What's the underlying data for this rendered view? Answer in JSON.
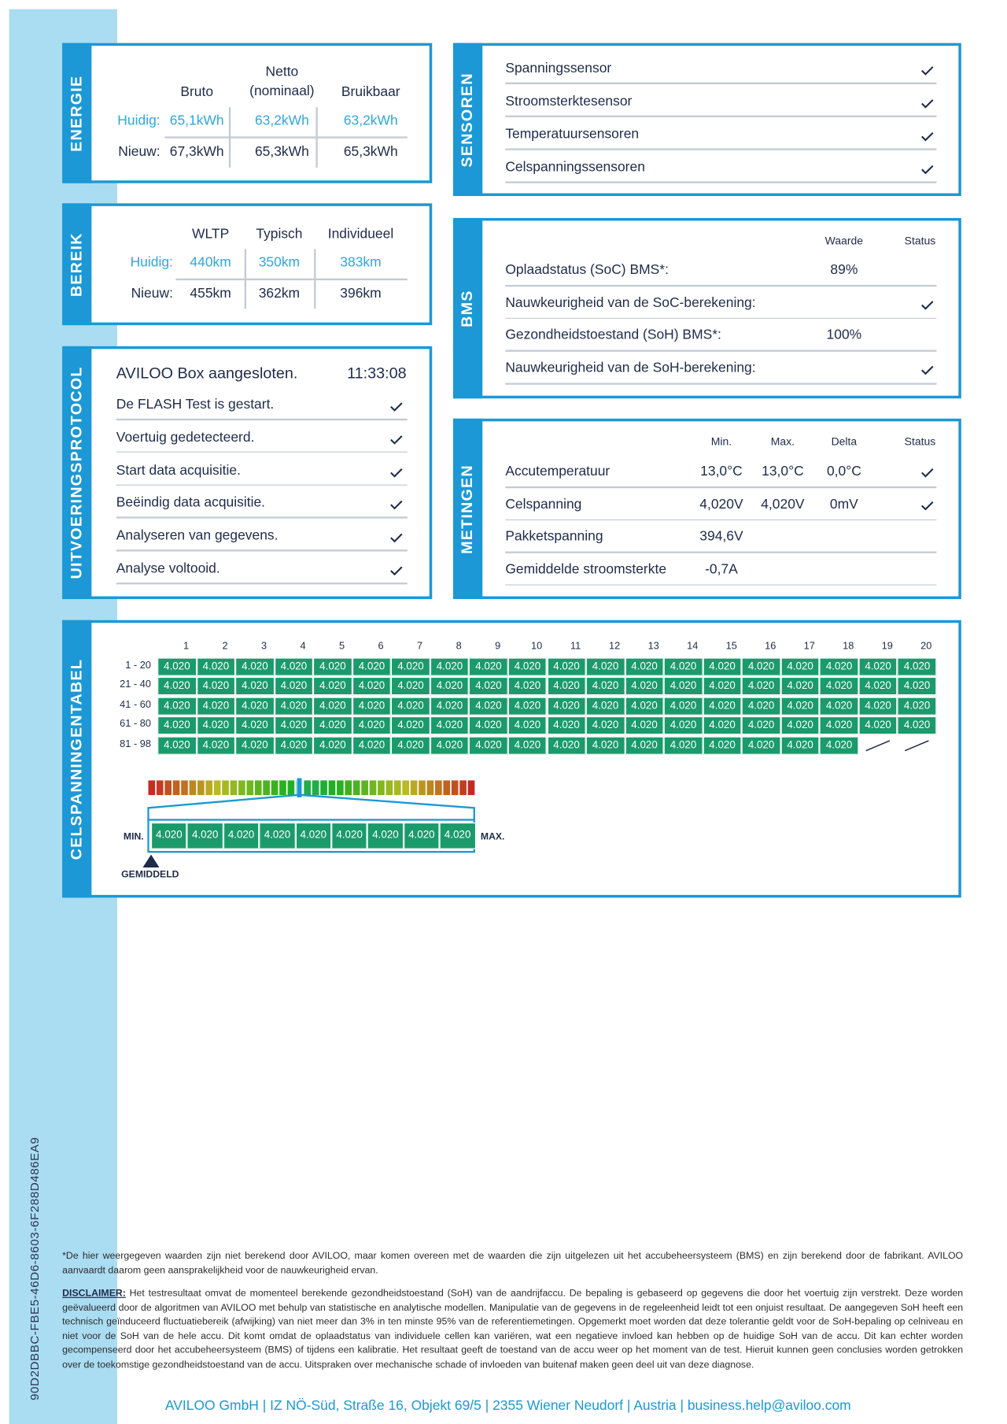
{
  "id_code": "90D2DBBC-FBE5-46D6-8603-6F288D486EA9",
  "energie": {
    "label": "ENERGIE",
    "headers": [
      "Bruto",
      "Netto (nominaal)",
      "Bruikbaar"
    ],
    "rows": [
      {
        "label": "Huidig:",
        "values": [
          "65,1kWh",
          "63,2kWh",
          "63,2kWh"
        ]
      },
      {
        "label": "Nieuw:",
        "values": [
          "67,3kWh",
          "65,3kWh",
          "65,3kWh"
        ]
      }
    ]
  },
  "bereik": {
    "label": "BEREIK",
    "headers": [
      "WLTP",
      "Typisch",
      "Individueel"
    ],
    "rows": [
      {
        "label": "Huidig:",
        "values": [
          "440km",
          "350km",
          "383km"
        ]
      },
      {
        "label": "Nieuw:",
        "values": [
          "455km",
          "362km",
          "396km"
        ]
      }
    ]
  },
  "protocol": {
    "label": "UITVOERINGSPROTOCOL",
    "title": "AVILOO Box aangesloten.",
    "time": "11:33:08",
    "steps": [
      "De FLASH Test is gestart.",
      "Voertuig gedetecteerd.",
      "Start data acquisitie.",
      "Beëindig data acquisitie.",
      "Analyseren van gegevens.",
      "Analyse voltooid."
    ]
  },
  "sensoren": {
    "label": "SENSOREN",
    "items": [
      "Spanningssensor",
      "Stroomsterktesensor",
      "Temperatuursensoren",
      "Celspanningssensoren"
    ]
  },
  "bms": {
    "label": "BMS",
    "headers": [
      "Waarde",
      "Status"
    ],
    "rows": [
      {
        "name": "Oplaadstatus (SoC) BMS*:",
        "value": "89%"
      },
      {
        "name": "Nauwkeurigheid van de SoC-berekening:"
      },
      {
        "name": "Gezondheidstoestand (SoH) BMS*:",
        "value": "100%"
      },
      {
        "name": "Nauwkeurigheid van de SoH-berekening:"
      }
    ]
  },
  "metingen": {
    "label": "METINGEN",
    "headers": [
      "Min.",
      "Max.",
      "Delta",
      "Status"
    ],
    "rows": [
      {
        "name": "Accutemperatuur",
        "values": [
          "13,0°C",
          "13,0°C",
          "0,0°C"
        ]
      },
      {
        "name": "Celspanning",
        "values": [
          "4,020V",
          "4,020V",
          "0mV"
        ]
      },
      {
        "name": "Pakketspanning",
        "values": [
          "394,6V"
        ]
      },
      {
        "name": "Gemiddelde stroomsterkte",
        "values": [
          "-0,7A"
        ]
      }
    ]
  },
  "celspanning": {
    "label": "CELSPANNINGENTABEL",
    "columns": [
      1,
      2,
      3,
      4,
      5,
      6,
      7,
      8,
      9,
      10,
      11,
      12,
      13,
      14,
      15,
      16,
      17,
      18,
      19,
      20
    ],
    "row_labels": [
      "1 - 20",
      "21 - 40",
      "41 - 60",
      "61 - 80",
      "81 - 98"
    ],
    "rows": [
      [
        "4.020",
        "4.020",
        "4.020",
        "4.020",
        "4.020",
        "4.020",
        "4.020",
        "4.020",
        "4.020",
        "4.020",
        "4.020",
        "4.020",
        "4.020",
        "4.020",
        "4.020",
        "4.020",
        "4.020",
        "4.020",
        "4.020",
        "4.020"
      ],
      [
        "4.020",
        "4.020",
        "4.020",
        "4.020",
        "4.020",
        "4.020",
        "4.020",
        "4.020",
        "4.020",
        "4.020",
        "4.020",
        "4.020",
        "4.020",
        "4.020",
        "4.020",
        "4.020",
        "4.020",
        "4.020",
        "4.020",
        "4.020"
      ],
      [
        "4.020",
        "4.020",
        "4.020",
        "4.020",
        "4.020",
        "4.020",
        "4.020",
        "4.020",
        "4.020",
        "4.020",
        "4.020",
        "4.020",
        "4.020",
        "4.020",
        "4.020",
        "4.020",
        "4.020",
        "4.020",
        "4.020",
        "4.020"
      ],
      [
        "4.020",
        "4.020",
        "4.020",
        "4.020",
        "4.020",
        "4.020",
        "4.020",
        "4.020",
        "4.020",
        "4.020",
        "4.020",
        "4.020",
        "4.020",
        "4.020",
        "4.020",
        "4.020",
        "4.020",
        "4.020",
        "4.020",
        "4.020"
      ],
      [
        "4.020",
        "4.020",
        "4.020",
        "4.020",
        "4.020",
        "4.020",
        "4.020",
        "4.020",
        "4.020",
        "4.020",
        "4.020",
        "4.020",
        "4.020",
        "4.020",
        "4.020",
        "4.020",
        "4.020",
        "4.020"
      ]
    ],
    "min_label": "MIN.",
    "max_label": "MAX.",
    "average_label": "GEMIDDELD",
    "range": [
      "4.020",
      "4.020",
      "4.020",
      "4.020",
      "4.020",
      "4.020",
      "4.020",
      "4.020",
      "4.020"
    ]
  },
  "footnote": "*De hier weergegeven waarden zijn niet berekend door AVILOO, maar komen overeen met de waarden die zijn uitgelezen uit het accubeheersysteem (BMS) en zijn berekend door de fabrikant. AVILOO aanvaardt daarom geen aansprakelijkheid voor de nauwkeurigheid ervan.",
  "disclaimer": {
    "label": "DISCLAIMER:",
    "text": "Het testresultaat omvat de momenteel berekende gezondheidstoestand (SoH) van de aandrijfaccu. De bepaling is gebaseerd op gegevens die door het voertuig zijn verstrekt. Deze worden geëvalueerd door de algoritmen van AVILOO met behulp van statistische en analytische modellen. Manipulatie van de gegevens in de regeleenheid leidt tot een onjuist resultaat. De aangegeven SoH heeft een technisch geïnduceerd fluctuatiebereik (afwijking) van niet meer dan 3% in ten minste 95% van de referentiemetingen. Opgemerkt moet worden dat deze tolerantie geldt voor de SoH-bepaling op celniveau en niet voor de SoH van de hele accu. Dit komt omdat de oplaadstatus van individuele cellen kan variëren, wat een negatieve invloed kan hebben op de huidige SoH van de accu. Dit kan echter worden gecompenseerd door het accubeheersysteem (BMS) of tijdens een kalibratie. Het resultaat geeft de toestand van de accu weer op het moment van de test. Hieruit kunnen geen conclusies worden getrokken over de toekomstige gezondheidstoestand van de accu. Uitspraken over mechanische schade of invloeden van buitenaf maken geen deel uit van deze diagnose."
  },
  "footer": "AVILOO GmbH | IZ NÖ-Süd, Straße 16, Objekt 69/5 | 2355 Wiener Neudorf | Austria | business.help@aviloo.com"
}
